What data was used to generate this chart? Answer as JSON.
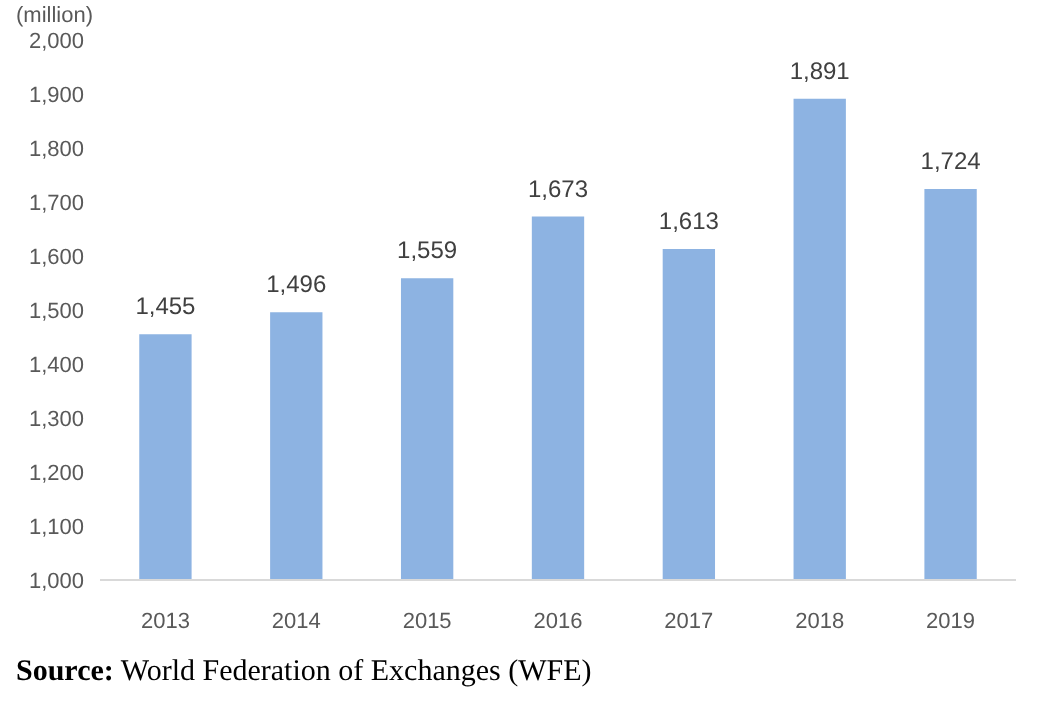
{
  "chart_data": {
    "type": "bar",
    "ylabel": "(million)",
    "categories": [
      "2013",
      "2014",
      "2015",
      "2016",
      "2017",
      "2018",
      "2019"
    ],
    "values": [
      1455,
      1496,
      1559,
      1673,
      1613,
      1891,
      1724
    ],
    "value_labels": [
      "1,455",
      "1,496",
      "1,559",
      "1,673",
      "1,613",
      "1,891",
      "1,724"
    ],
    "color": "#8db3e2",
    "ylim": [
      1000,
      2000
    ],
    "yticks": [
      {
        "value": 1000,
        "label": "1,000"
      },
      {
        "value": 1100,
        "label": "1,100"
      },
      {
        "value": 1200,
        "label": "1,200"
      },
      {
        "value": 1300,
        "label": "1,300"
      },
      {
        "value": 1400,
        "label": "1,400"
      },
      {
        "value": 1500,
        "label": "1,500"
      },
      {
        "value": 1600,
        "label": "1,600"
      },
      {
        "value": 1700,
        "label": "1,700"
      },
      {
        "value": 1800,
        "label": "1,800"
      },
      {
        "value": 1900,
        "label": "1,900"
      },
      {
        "value": 2000,
        "label": "2,000"
      }
    ],
    "grid": false,
    "annotations": [
      "Source: World Federation of Exchanges (WFE)"
    ]
  }
}
